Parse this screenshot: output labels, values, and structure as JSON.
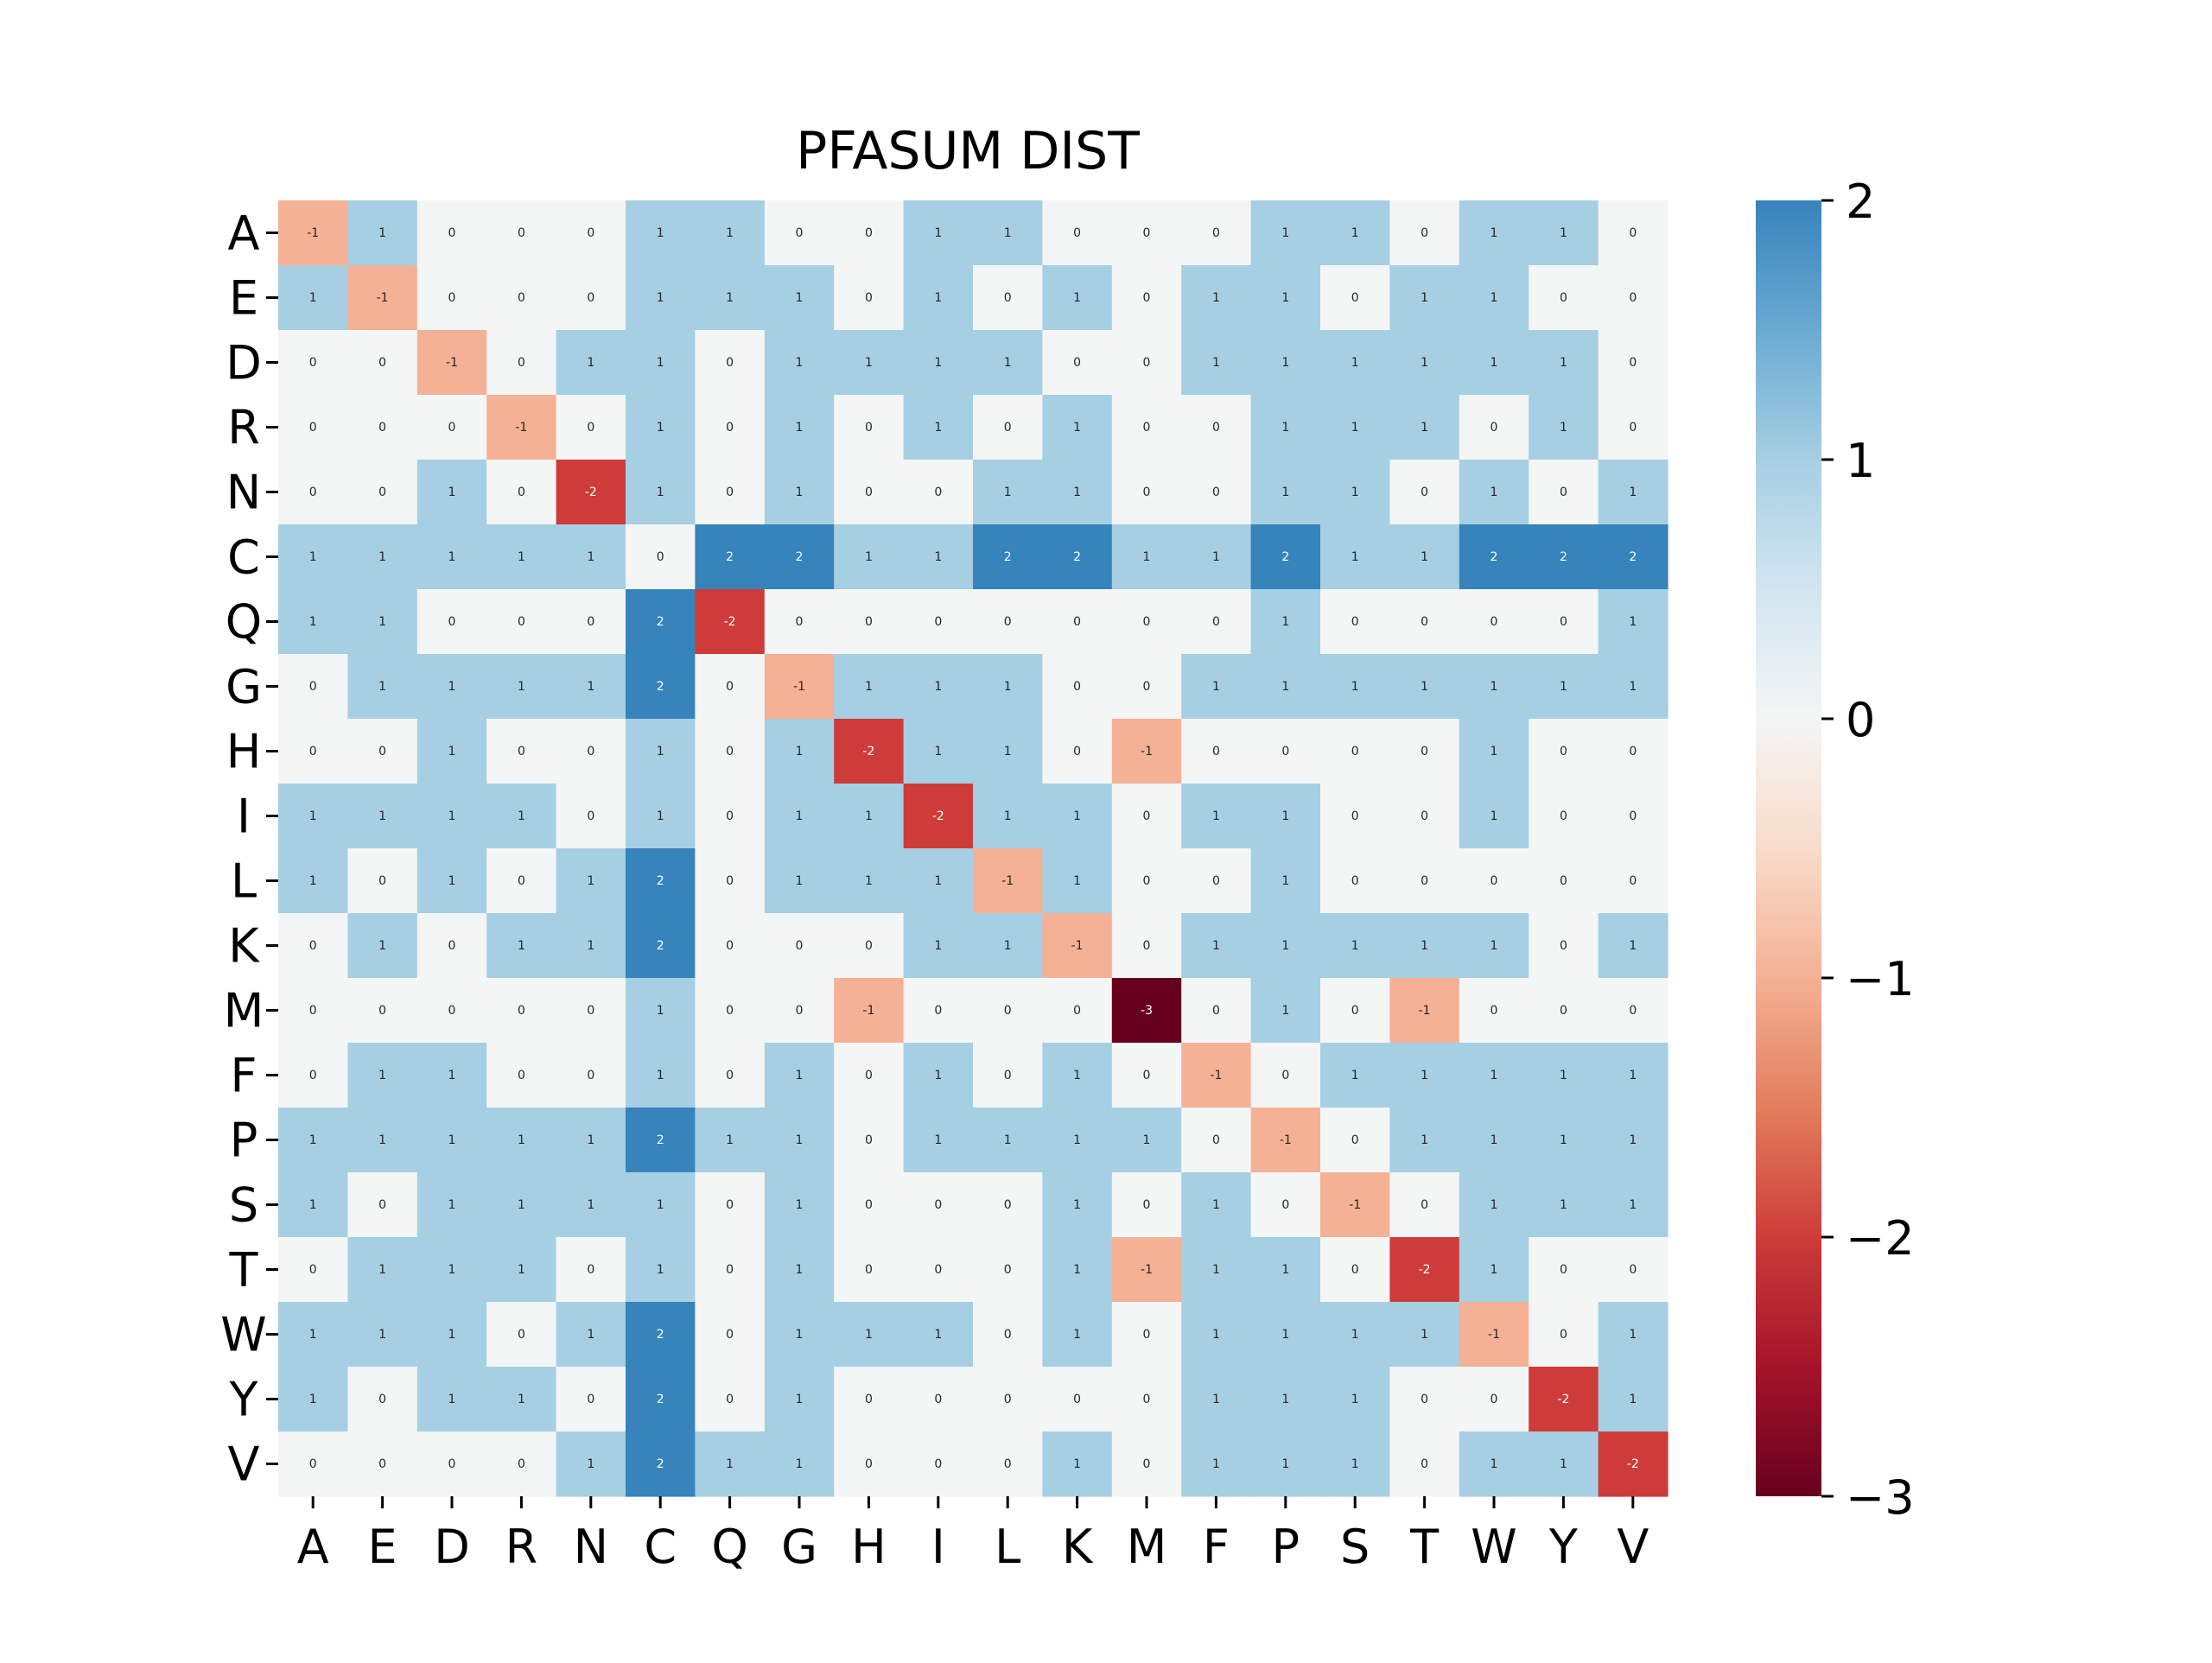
{
  "chart_data": {
    "type": "heatmap",
    "title": "PFASUM DIST",
    "xlabel": "",
    "ylabel": "",
    "x_labels": [
      "A",
      "E",
      "D",
      "R",
      "N",
      "C",
      "Q",
      "G",
      "H",
      "I",
      "L",
      "K",
      "M",
      "F",
      "P",
      "S",
      "T",
      "W",
      "Y",
      "V"
    ],
    "y_labels": [
      "A",
      "E",
      "D",
      "R",
      "N",
      "C",
      "Q",
      "G",
      "H",
      "I",
      "L",
      "K",
      "M",
      "F",
      "P",
      "S",
      "T",
      "W",
      "Y",
      "V"
    ],
    "values": [
      [
        -1,
        1,
        0,
        0,
        0,
        1,
        1,
        0,
        0,
        1,
        1,
        0,
        0,
        0,
        1,
        1,
        0,
        1,
        1,
        0
      ],
      [
        1,
        -1,
        0,
        0,
        0,
        1,
        1,
        1,
        0,
        1,
        0,
        1,
        0,
        1,
        1,
        0,
        1,
        1,
        0,
        0
      ],
      [
        0,
        0,
        -1,
        0,
        1,
        1,
        0,
        1,
        1,
        1,
        1,
        0,
        0,
        1,
        1,
        1,
        1,
        1,
        1,
        0
      ],
      [
        0,
        0,
        0,
        -1,
        0,
        1,
        0,
        1,
        0,
        1,
        0,
        1,
        0,
        0,
        1,
        1,
        1,
        0,
        1,
        0
      ],
      [
        0,
        0,
        1,
        0,
        -2,
        1,
        0,
        1,
        0,
        0,
        1,
        1,
        0,
        0,
        1,
        1,
        0,
        1,
        0,
        1
      ],
      [
        1,
        1,
        1,
        1,
        1,
        0,
        2,
        2,
        1,
        1,
        2,
        2,
        1,
        1,
        2,
        1,
        1,
        2,
        2,
        2
      ],
      [
        1,
        1,
        0,
        0,
        0,
        2,
        -2,
        0,
        0,
        0,
        0,
        0,
        0,
        0,
        1,
        0,
        0,
        0,
        0,
        1
      ],
      [
        0,
        1,
        1,
        1,
        1,
        2,
        0,
        -1,
        1,
        1,
        1,
        0,
        0,
        1,
        1,
        1,
        1,
        1,
        1,
        1
      ],
      [
        0,
        0,
        1,
        0,
        0,
        1,
        0,
        1,
        -2,
        1,
        1,
        0,
        -1,
        0,
        0,
        0,
        0,
        1,
        0,
        0
      ],
      [
        1,
        1,
        1,
        1,
        0,
        1,
        0,
        1,
        1,
        -2,
        1,
        1,
        0,
        1,
        1,
        0,
        0,
        1,
        0,
        0
      ],
      [
        1,
        0,
        1,
        0,
        1,
        2,
        0,
        1,
        1,
        1,
        -1,
        1,
        0,
        0,
        1,
        0,
        0,
        0,
        0,
        0
      ],
      [
        0,
        1,
        0,
        1,
        1,
        2,
        0,
        0,
        0,
        1,
        1,
        -1,
        0,
        1,
        1,
        1,
        1,
        1,
        0,
        1
      ],
      [
        0,
        0,
        0,
        0,
        0,
        1,
        0,
        0,
        -1,
        0,
        0,
        0,
        -3,
        0,
        1,
        0,
        -1,
        0,
        0,
        0
      ],
      [
        0,
        1,
        1,
        0,
        0,
        1,
        0,
        1,
        0,
        1,
        0,
        1,
        0,
        -1,
        0,
        1,
        1,
        1,
        1,
        1
      ],
      [
        1,
        1,
        1,
        1,
        1,
        2,
        1,
        1,
        0,
        1,
        1,
        1,
        1,
        0,
        -1,
        0,
        1,
        1,
        1,
        1
      ],
      [
        1,
        0,
        1,
        1,
        1,
        1,
        0,
        1,
        0,
        0,
        0,
        1,
        0,
        1,
        0,
        -1,
        0,
        1,
        1,
        1
      ],
      [
        0,
        1,
        1,
        1,
        0,
        1,
        0,
        1,
        0,
        0,
        0,
        1,
        -1,
        1,
        1,
        0,
        -2,
        1,
        0,
        0
      ],
      [
        1,
        1,
        1,
        0,
        1,
        2,
        0,
        1,
        1,
        1,
        0,
        1,
        0,
        1,
        1,
        1,
        1,
        -1,
        0,
        1
      ],
      [
        1,
        0,
        1,
        1,
        0,
        2,
        0,
        1,
        0,
        0,
        0,
        0,
        0,
        1,
        1,
        1,
        0,
        0,
        -2,
        1
      ],
      [
        0,
        0,
        0,
        0,
        1,
        2,
        1,
        1,
        0,
        0,
        0,
        1,
        0,
        1,
        1,
        1,
        0,
        1,
        1,
        -2
      ]
    ],
    "vmin": -3,
    "vmax": 2,
    "colormap": "RdBu diverging (red negative, white zero, blue positive)",
    "colorbar_ticks": [
      "−3",
      "−2",
      "−1",
      "0",
      "1",
      "2"
    ],
    "colors": {
      "-3": "#67001f",
      "-2": "#cd3c39",
      "-1": "#f4b195",
      "0": "#f4f5f5",
      "1": "#a6cfe3",
      "2": "#3783bb"
    },
    "annotated": true,
    "grid": false,
    "colorbar": "right"
  }
}
